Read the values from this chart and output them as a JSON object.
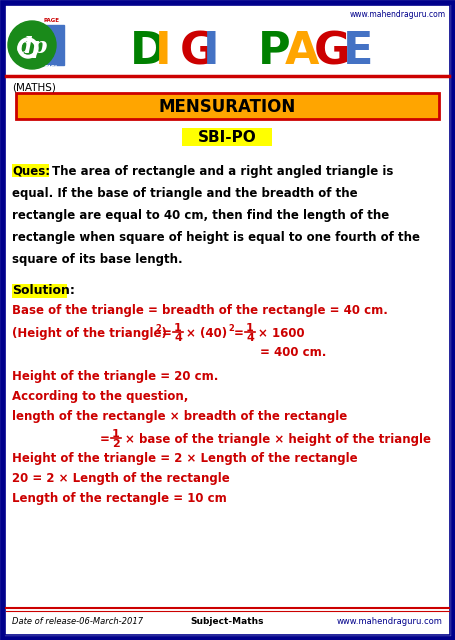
{
  "title": "DIGI PAGE",
  "website": "www.mahendraguru.com",
  "subject": "(MATHS)",
  "topic": "MENSURATION",
  "exam": "SBI-PO",
  "question_label": "Ques:",
  "question_lines": [
    "The area of rectangle and a right angled triangle is",
    "equal. If the base of triangle and the breadth of the",
    "rectangle are equal to 40 cm, then find the length of the",
    "rectangle when square of height is equal to one fourth of the",
    "square of its base length."
  ],
  "solution_label": "Solution:",
  "sol_line1": "Base of the triangle = breadth of the rectangle = 40 cm.",
  "sol_line3": "Height of the triangle = 20 cm.",
  "sol_line4": "According to the question,",
  "sol_line5": "length of the rectangle × breadth of the rectangle",
  "sol_line7": "Height of the triangle = 2 × Length of the rectangle",
  "sol_line8": "20 = 2 × Length of the rectangle",
  "sol_line9": "Length of the rectangle = 10 cm",
  "footer_date": "Date of release-06-March-2017",
  "footer_subject": "Subject-Maths",
  "footer_web": "www.mahendraguru.com",
  "bg_color": "#ffffff",
  "topic_bg": "#FFA500",
  "topic_border": "#cc0000",
  "exam_highlight": "#FFFF00",
  "ques_highlight": "#FFFF00",
  "sol_highlight": "#FFFF00",
  "red": "#cc0000",
  "black": "#000000",
  "dark_blue": "#00008B",
  "title_letters": [
    "D",
    "I",
    "G",
    "I",
    " ",
    "P",
    "A",
    "G",
    "E"
  ],
  "title_colors": [
    "#008000",
    "#FFA500",
    "#cc0000",
    "#4472c4",
    "#ffffff",
    "#008000",
    "#FFA500",
    "#cc0000",
    "#4472c4"
  ]
}
